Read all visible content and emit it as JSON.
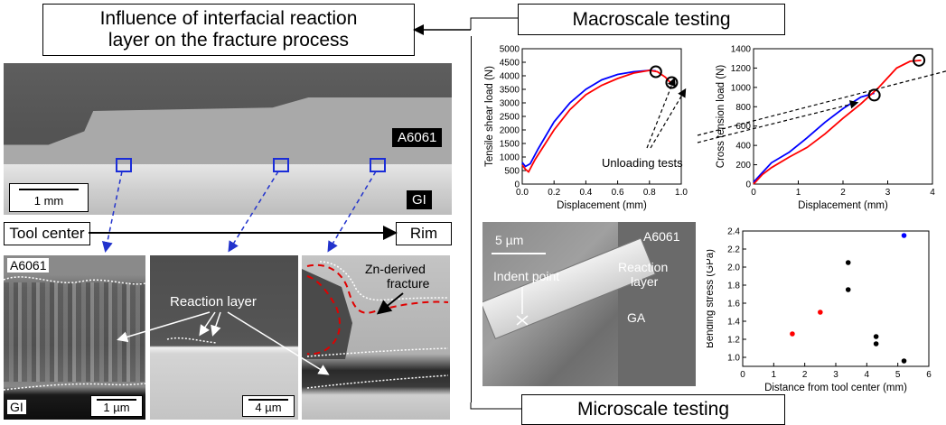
{
  "left": {
    "title_line1": "Influence of interfacial reaction",
    "title_line2": "layer on the fracture process",
    "macro_a6061": "A6061",
    "macro_gi": "GI",
    "macro_scale": "1 mm",
    "tool_center": "Tool center",
    "rim": "Rim",
    "panel1": {
      "top_label": "A6061",
      "bottom_label": "GI",
      "scale": "1 µm"
    },
    "panel2": {
      "annotation": "Reaction layer",
      "scale": "4 µm"
    },
    "panel3": {
      "annotation_line1": "Zn-derived",
      "annotation_line2": "fracture"
    }
  },
  "right": {
    "macroscale_title": "Macroscale testing",
    "microscale_title": "Microscale testing",
    "unloading_label": "Unloading tests",
    "sem": {
      "scale": "5 µm",
      "a6061": "A6061",
      "indent_point": "Indent point",
      "reaction_line1": "Reaction",
      "reaction_line2": "layer",
      "ga": "GA"
    }
  },
  "colors": {
    "blue": "#0000ff",
    "red": "#ff0000",
    "dashed_blue": "#2233cc"
  },
  "chart_data": [
    {
      "type": "line",
      "ylabel": "Tensile shear load (N)",
      "xlabel": "Displacement (mm)",
      "xlim": [
        0,
        1.0
      ],
      "ylim": [
        0,
        5000
      ],
      "xticks": [
        "0.0",
        "0.2",
        "0.4",
        "0.6",
        "0.8",
        "1.0"
      ],
      "yticks": [
        "0",
        "500",
        "1000",
        "1500",
        "2000",
        "2500",
        "3000",
        "3500",
        "4000",
        "4500",
        "5000"
      ],
      "series": [
        {
          "color": "#0000ff",
          "x": [
            0,
            0.02,
            0.05,
            0.1,
            0.2,
            0.3,
            0.4,
            0.5,
            0.6,
            0.7,
            0.8,
            0.84
          ],
          "y": [
            800,
            650,
            750,
            1300,
            2300,
            3000,
            3500,
            3850,
            4050,
            4150,
            4200,
            4180
          ]
        },
        {
          "color": "#ff0000",
          "x": [
            0,
            0.02,
            0.04,
            0.08,
            0.2,
            0.3,
            0.4,
            0.5,
            0.6,
            0.7,
            0.8,
            0.85,
            0.9,
            0.94
          ],
          "y": [
            700,
            550,
            450,
            900,
            2000,
            2750,
            3300,
            3650,
            3900,
            4100,
            4200,
            4150,
            3950,
            3700
          ]
        }
      ],
      "markers": [
        {
          "x": 0.84,
          "y": 4150
        },
        {
          "x": 0.94,
          "y": 3750
        }
      ]
    },
    {
      "type": "line",
      "ylabel": "Cross tension load (N)",
      "xlabel": "Displacement (mm)",
      "xlim": [
        0,
        4
      ],
      "ylim": [
        0,
        1400
      ],
      "xticks": [
        "0",
        "1",
        "2",
        "3",
        "4"
      ],
      "yticks": [
        "0",
        "200",
        "400",
        "600",
        "800",
        "1000",
        "1200",
        "1400"
      ],
      "series": [
        {
          "color": "#0000ff",
          "x": [
            0,
            0.2,
            0.4,
            0.8,
            1.2,
            1.6,
            2.0,
            2.4,
            2.7
          ],
          "y": [
            20,
            120,
            220,
            330,
            480,
            640,
            780,
            900,
            940
          ]
        },
        {
          "color": "#ff0000",
          "x": [
            0,
            0.2,
            0.4,
            0.8,
            1.2,
            1.6,
            2.0,
            2.4,
            2.8,
            3.2,
            3.5,
            3.75
          ],
          "y": [
            0,
            100,
            170,
            280,
            380,
            520,
            680,
            830,
            1000,
            1200,
            1270,
            1280
          ]
        }
      ],
      "markers": [
        {
          "x": 2.7,
          "y": 920
        },
        {
          "x": 3.7,
          "y": 1280
        }
      ]
    },
    {
      "type": "scatter",
      "ylabel": "Bending stress (GPa)",
      "xlabel": "Distance from tool center (mm)",
      "xlim": [
        0,
        6
      ],
      "ylim": [
        0.9,
        2.4
      ],
      "xticks": [
        "0",
        "1",
        "2",
        "3",
        "4",
        "5",
        "6"
      ],
      "yticks": [
        "1.0",
        "1.2",
        "1.4",
        "1.6",
        "1.8",
        "2.0",
        "2.2",
        "2.4"
      ],
      "points": [
        {
          "x": 1.6,
          "y": 1.26,
          "color": "#ff0000"
        },
        {
          "x": 2.5,
          "y": 1.5,
          "color": "#ff0000"
        },
        {
          "x": 3.4,
          "y": 2.05,
          "color": "#000000"
        },
        {
          "x": 3.4,
          "y": 1.75,
          "color": "#000000"
        },
        {
          "x": 4.3,
          "y": 1.23,
          "color": "#000000"
        },
        {
          "x": 4.3,
          "y": 1.15,
          "color": "#000000"
        },
        {
          "x": 5.2,
          "y": 0.96,
          "color": "#000000"
        },
        {
          "x": 5.2,
          "y": 2.35,
          "color": "#0000ff"
        }
      ]
    }
  ]
}
